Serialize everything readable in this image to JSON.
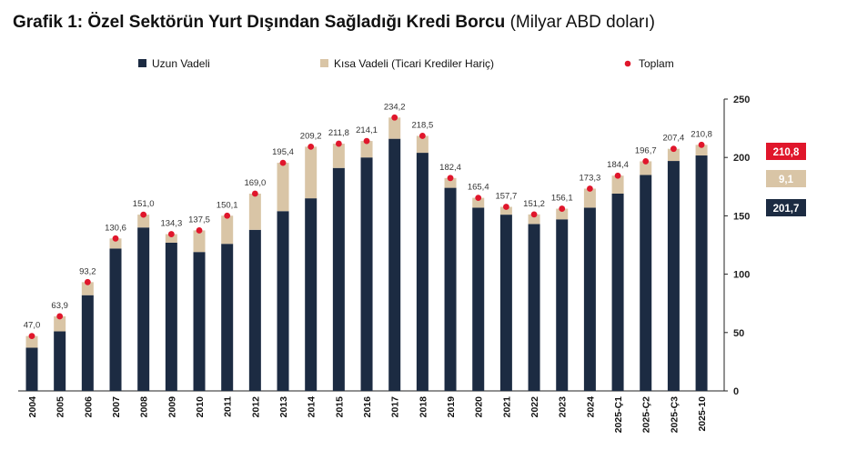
{
  "title": {
    "bold": "Grafik 1: Özel Sektörün Yurt Dışından Sağladığı Kredi Borcu",
    "unit": "(Milyar ABD doları)"
  },
  "colors": {
    "long_term": "#1c2b42",
    "short_term": "#d9c5a6",
    "total_dot": "#e0162b",
    "axis": "#222222"
  },
  "chart_data": {
    "type": "bar",
    "stacked": true,
    "categories": [
      "2004",
      "2005",
      "2006",
      "2007",
      "2008",
      "2009",
      "2010",
      "2011",
      "2012",
      "2013",
      "2014",
      "2015",
      "2016",
      "2017",
      "2018",
      "2019",
      "2020",
      "2021",
      "2022",
      "2023",
      "2024",
      "2025-Ç1",
      "2025-Ç2",
      "2025-Ç3",
      "2025-10"
    ],
    "series": [
      {
        "name": "Uzun Vadeli",
        "values": [
          37,
          51,
          82,
          122,
          140,
          127,
          119,
          126,
          138,
          154,
          165,
          191,
          200,
          216,
          204,
          174,
          157,
          151,
          143,
          147,
          157,
          169,
          185,
          197,
          201.7
        ]
      },
      {
        "name": "Kısa Vadeli (Ticari Krediler Hariç)",
        "values": [
          10,
          12.9,
          11.2,
          8.6,
          11,
          7.3,
          18.5,
          24.1,
          31,
          41.4,
          44.2,
          20.8,
          14.1,
          18.2,
          14.5,
          8.4,
          8.4,
          6.7,
          8.2,
          9.1,
          16.3,
          15.4,
          11.7,
          10.4,
          9.1
        ]
      }
    ],
    "totals": {
      "name": "Toplam",
      "values": [
        47.0,
        63.9,
        93.2,
        130.6,
        151.0,
        134.3,
        137.5,
        150.1,
        169.0,
        195.4,
        209.2,
        211.8,
        214.1,
        234.2,
        218.5,
        182.4,
        165.4,
        157.7,
        151.2,
        156.1,
        173.3,
        184.4,
        196.7,
        207.4,
        210.8
      ]
    },
    "value_labels": [
      "47,0",
      "63,9",
      "93,2",
      "130,6",
      "151,0",
      "134,3",
      "137,5",
      "150,1",
      "169,0",
      "195,4",
      "209,2",
      "211,8",
      "214,1",
      "234,2",
      "218,5",
      "182,4",
      "165,4",
      "157,7",
      "151,2",
      "156,1",
      "173,3",
      "184,4",
      "196,7",
      "207,4",
      "210,8"
    ],
    "ylim": [
      0,
      250
    ],
    "yticks": [
      0,
      50,
      100,
      150,
      200,
      250
    ],
    "ytick_labels": [
      "0",
      "50",
      "100",
      "150",
      "200",
      "250"
    ],
    "y_axis_side": "right",
    "grid": false,
    "legend": {
      "placement": "top",
      "items": [
        "Uzun Vadeli",
        "Kısa Vadeli (Ticari Krediler Hariç)",
        "Toplam"
      ]
    },
    "badges": [
      {
        "label": "210,8",
        "value": 210.8,
        "series": "Toplam"
      },
      {
        "label": "9,1",
        "value": 9.1,
        "series": "Kısa Vadeli (Ticari Krediler Hariç)"
      },
      {
        "label": "201,7",
        "value": 201.7,
        "series": "Uzun Vadeli"
      }
    ]
  }
}
